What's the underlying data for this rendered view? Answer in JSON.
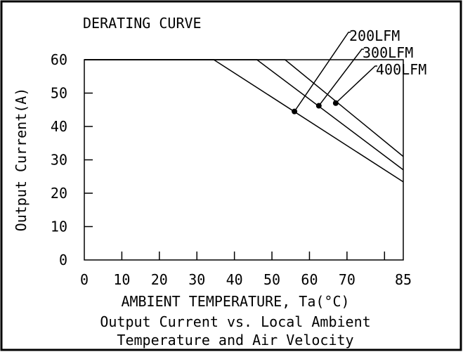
{
  "chart_data": {
    "type": "line",
    "title": "DERATING CURVE",
    "xlabel": "AMBIENT TEMPERATURE, Ta(°C)",
    "ylabel": "Output Current(A)",
    "caption_line1": "Output Current vs. Local Ambient",
    "caption_line2": "Temperature and Air Velocity",
    "xlim": [
      0,
      85
    ],
    "ylim": [
      0,
      60
    ],
    "x_ticks": [
      0,
      10,
      20,
      30,
      40,
      50,
      60,
      70,
      85
    ],
    "y_ticks": [
      0,
      10,
      20,
      30,
      40,
      50,
      60
    ],
    "grid": false,
    "series": [
      {
        "name": "200LFM",
        "x": [
          0,
          34.5,
          85
        ],
        "y": [
          60,
          60,
          23.4
        ],
        "marker": {
          "x": 56,
          "y": 44.5
        }
      },
      {
        "name": "300LFM",
        "x": [
          0,
          46,
          85
        ],
        "y": [
          60,
          60,
          27
        ],
        "marker": {
          "x": 62.5,
          "y": 46.2
        }
      },
      {
        "name": "400LFM",
        "x": [
          0,
          53.5,
          85
        ],
        "y": [
          60,
          60,
          31
        ],
        "marker": {
          "x": 67,
          "y": 47
        }
      }
    ],
    "colors": {
      "line": "#000000",
      "background": "#ffffff"
    }
  }
}
